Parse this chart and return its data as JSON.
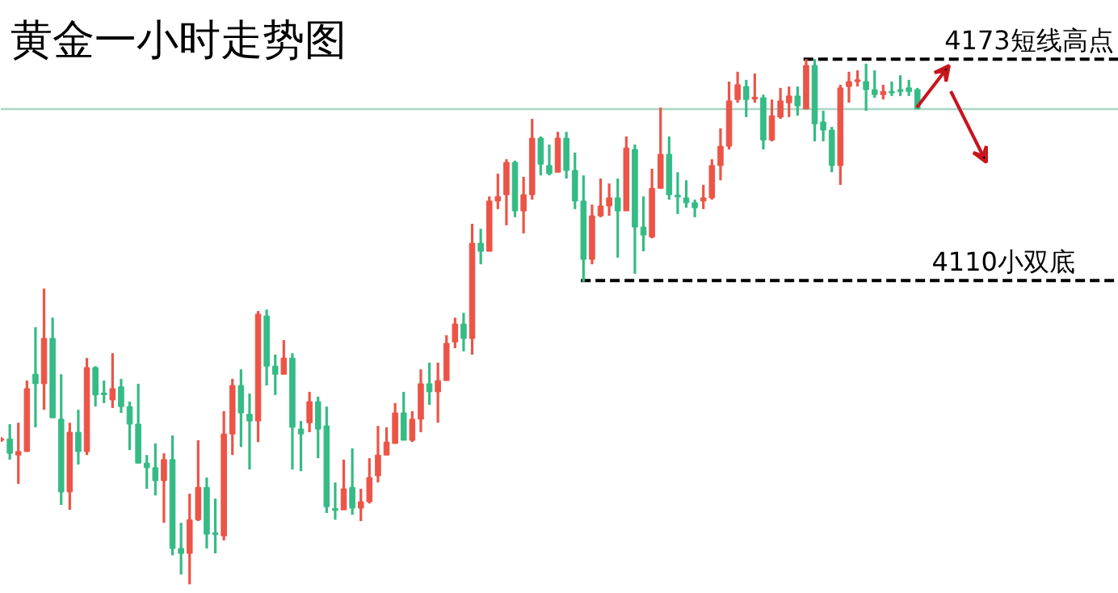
{
  "chart_data": {
    "type": "candlestick",
    "title": "黄金一小时走势图",
    "tick_labels": false,
    "grid": false,
    "categories": [
      null,
      null,
      null,
      null,
      null,
      null,
      null,
      null,
      null,
      null,
      null,
      null,
      null,
      null,
      null,
      null,
      null,
      null,
      null,
      null,
      null,
      null,
      null,
      null,
      null,
      null,
      null,
      null,
      null,
      null,
      null,
      null,
      null,
      null,
      null,
      null,
      null,
      null,
      null,
      null,
      null,
      null,
      null,
      null,
      null,
      null,
      null,
      null,
      null,
      null,
      null,
      null,
      null,
      null,
      null,
      null,
      null,
      null,
      null,
      null,
      null,
      null,
      null,
      null,
      null,
      null,
      null,
      null,
      null,
      null,
      null,
      null,
      null,
      null,
      null,
      null,
      null,
      null,
      null,
      null,
      null,
      null,
      null,
      null,
      null,
      null,
      null,
      null,
      null,
      null,
      null,
      null,
      null,
      null,
      null,
      null,
      null,
      null,
      null,
      null,
      null,
      null,
      null,
      null,
      null,
      null,
      null,
      null
    ],
    "ylim": [
      4020.8,
      4189.6
    ],
    "ohlc": [
      [
        4064.5,
        4065.4,
        4064.0,
        4064.9
      ],
      [
        4064.9,
        4069.1,
        4059.0,
        4060.8
      ],
      [
        4060.3,
        4069.5,
        4052.1,
        4061.3
      ],
      [
        4061.3,
        4081.5,
        4061.3,
        4079.2
      ],
      [
        4083.3,
        4096.7,
        4068.2,
        4080.6
      ],
      [
        4080.6,
        4107.7,
        4073.2,
        4093.5
      ],
      [
        4093.5,
        4099.4,
        4070.9,
        4070.9
      ],
      [
        4070.5,
        4083.3,
        4046.1,
        4049.8
      ],
      [
        4049.8,
        4069.5,
        4044.7,
        4066.8
      ],
      [
        4066.8,
        4073.2,
        4057.6,
        4061.3
      ],
      [
        4061.3,
        4087.9,
        4060.3,
        4085.2
      ],
      [
        4085.2,
        4085.6,
        4074.1,
        4077.4
      ],
      [
        4077.8,
        4081.5,
        4075.1,
        4077.6
      ],
      [
        4076.0,
        4089.3,
        4073.7,
        4079.2
      ],
      [
        4079.7,
        4082.0,
        4072.3,
        4074.1
      ],
      [
        4074.1,
        4075.5,
        4061.7,
        4069.1
      ],
      [
        4069.1,
        4080.6,
        4058.0,
        4058.0
      ],
      [
        4058.0,
        4060.3,
        4050.7,
        4056.7
      ],
      [
        4056.7,
        4063.6,
        4048.8,
        4053.0
      ],
      [
        4053.0,
        4060.8,
        4041.0,
        4059.0
      ],
      [
        4059.0,
        4065.9,
        4031.8,
        4033.7
      ],
      [
        4033.7,
        4041.0,
        4026.3,
        4032.3
      ],
      [
        4032.3,
        4049.3,
        4023.5,
        4041.9
      ],
      [
        4041.9,
        4064.5,
        4041.5,
        4051.1
      ],
      [
        4051.1,
        4053.9,
        4033.7,
        4037.8
      ],
      [
        4038.0,
        4047.9,
        4032.3,
        4037.8
      ],
      [
        4037.3,
        4072.8,
        4036.0,
        4066.3
      ],
      [
        4066.3,
        4082.0,
        4060.3,
        4080.1
      ],
      [
        4080.1,
        4084.7,
        4062.6,
        4072.3
      ],
      [
        4071.9,
        4077.8,
        4056.2,
        4070.0
      ],
      [
        4070.0,
        4101.3,
        4064.0,
        4100.4
      ],
      [
        4099.9,
        4101.7,
        4080.1,
        4085.6
      ],
      [
        4085.6,
        4088.9,
        4077.4,
        4083.3
      ],
      [
        4083.3,
        4093.0,
        4083.3,
        4087.9
      ],
      [
        4087.9,
        4089.3,
        4056.2,
        4068.2
      ],
      [
        4067.7,
        4070.0,
        4055.7,
        4066.3
      ],
      [
        4069.5,
        4078.3,
        4066.8,
        4075.5
      ],
      [
        4075.5,
        4076.9,
        4059.4,
        4067.7
      ],
      [
        4068.6,
        4074.1,
        4043.8,
        4045.6
      ],
      [
        4044.9,
        4052.5,
        4041.9,
        4044.7
      ],
      [
        4044.7,
        4059.0,
        4044.7,
        4050.7
      ],
      [
        4051.1,
        4062.2,
        4043.3,
        4045.2
      ],
      [
        4045.2,
        4050.7,
        4041.5,
        4047.0
      ],
      [
        4047.0,
        4059.4,
        4046.5,
        4053.9
      ],
      [
        4054.4,
        4068.6,
        4052.5,
        4060.3
      ],
      [
        4060.3,
        4068.2,
        4060.3,
        4064.0
      ],
      [
        4063.6,
        4075.1,
        4063.6,
        4072.3
      ],
      [
        4072.3,
        4078.3,
        4064.5,
        4064.5
      ],
      [
        4064.5,
        4072.8,
        4064.0,
        4070.5
      ],
      [
        4070.5,
        4084.7,
        4066.8,
        4080.6
      ],
      [
        4080.6,
        4086.6,
        4074.6,
        4078.3
      ],
      [
        4078.3,
        4086.6,
        4069.5,
        4081.5
      ],
      [
        4081.5,
        4094.4,
        4081.5,
        4092.1
      ],
      [
        4092.5,
        4099.4,
        4090.7,
        4097.6
      ],
      [
        4097.6,
        4100.8,
        4089.8,
        4093.5
      ],
      [
        4093.5,
        4126.1,
        4088.9,
        4120.6
      ],
      [
        4120.6,
        4124.7,
        4114.6,
        4118.3
      ],
      [
        4118.3,
        4133.9,
        4118.3,
        4132.6
      ],
      [
        4132.6,
        4140.4,
        4130.3,
        4133.9
      ],
      [
        4134.4,
        4144.5,
        4125.7,
        4143.6
      ],
      [
        4143.6,
        4144.1,
        4128.0,
        4129.8
      ],
      [
        4129.8,
        4139.5,
        4123.4,
        4134.4
      ],
      [
        4134.4,
        4156.0,
        4133.0,
        4150.5
      ],
      [
        4150.5,
        4151.0,
        4139.9,
        4143.1
      ],
      [
        4142.7,
        4148.7,
        4139.9,
        4140.4
      ],
      [
        4140.8,
        4152.3,
        4140.8,
        4150.5
      ],
      [
        4150.5,
        4152.3,
        4139.0,
        4141.3
      ],
      [
        4141.3,
        4146.4,
        4130.3,
        4132.6
      ],
      [
        4132.6,
        4139.9,
        4109.6,
        4116.0
      ],
      [
        4116.0,
        4131.6,
        4114.6,
        4128.4
      ],
      [
        4128.4,
        4139.0,
        4128.0,
        4131.2
      ],
      [
        4131.2,
        4137.6,
        4128.4,
        4133.5
      ],
      [
        4133.5,
        4139.0,
        4116.5,
        4129.8
      ],
      [
        4129.8,
        4151.0,
        4129.8,
        4147.7
      ],
      [
        4147.3,
        4148.7,
        4111.9,
        4125.2
      ],
      [
        4125.2,
        4133.9,
        4118.3,
        4122.9
      ],
      [
        4122.4,
        4141.8,
        4122.0,
        4136.2
      ],
      [
        4136.2,
        4159.2,
        4136.2,
        4145.9
      ],
      [
        4145.9,
        4151.0,
        4133.0,
        4134.4
      ],
      [
        4134.1,
        4140.8,
        4128.9,
        4133.9
      ],
      [
        4133.5,
        4138.5,
        4130.7,
        4132.1
      ],
      [
        4132.1,
        4133.0,
        4128.0,
        4130.7
      ],
      [
        4132.6,
        4137.2,
        4130.3,
        4133.5
      ],
      [
        4133.5,
        4144.5,
        4133.0,
        4142.7
      ],
      [
        4142.7,
        4153.3,
        4138.5,
        4148.2
      ],
      [
        4148.2,
        4166.6,
        4147.3,
        4161.1
      ],
      [
        4161.5,
        4169.4,
        4160.6,
        4165.7
      ],
      [
        4165.2,
        4167.1,
        4156.5,
        4161.5
      ],
      [
        4161.8,
        4168.9,
        4160.6,
        4162.0
      ],
      [
        4162.0,
        4162.9,
        4147.3,
        4150.0
      ],
      [
        4150.0,
        4161.5,
        4149.6,
        4156.9
      ],
      [
        4156.5,
        4164.8,
        4156.0,
        4161.1
      ],
      [
        4160.6,
        4165.2,
        4156.5,
        4162.5
      ],
      [
        4162.5,
        4165.2,
        4156.9,
        4159.7
      ],
      [
        4158.8,
        4173.0,
        4158.8,
        4171.2
      ],
      [
        4171.2,
        4173.0,
        4149.6,
        4154.6
      ],
      [
        4155.1,
        4158.3,
        4149.6,
        4152.8
      ],
      [
        4152.8,
        4153.7,
        4140.8,
        4142.7
      ],
      [
        4142.7,
        4165.7,
        4137.2,
        4164.8
      ],
      [
        4165.2,
        4169.4,
        4160.6,
        4166.6
      ],
      [
        4166.6,
        4169.8,
        4165.2,
        4167.1
      ],
      [
        4166.6,
        4171.7,
        4158.3,
        4164.3
      ],
      [
        4164.3,
        4169.8,
        4162.0,
        4162.9
      ],
      [
        4162.9,
        4165.7,
        4161.5,
        4163.8
      ],
      [
        4163.8,
        4166.6,
        4162.5,
        4163.4
      ],
      [
        4164.3,
        4168.4,
        4162.5,
        4163.8
      ],
      [
        4164.8,
        4167.1,
        4162.5,
        4163.8
      ],
      [
        4164.3,
        4164.8,
        4158.8,
        4158.8
      ]
    ],
    "ref_lines": [
      {
        "axis": "y",
        "value": 4173,
        "label": "4173短线高点",
        "color": "#000000",
        "line_style": "dashed"
      },
      {
        "axis": "y",
        "value": 4110,
        "label": "4110小双底",
        "color": "#000000",
        "line_style": "dashed"
      },
      {
        "axis": "y",
        "value": 4158.8,
        "color": "#a9d8c4",
        "line_style": "solid"
      }
    ]
  }
}
